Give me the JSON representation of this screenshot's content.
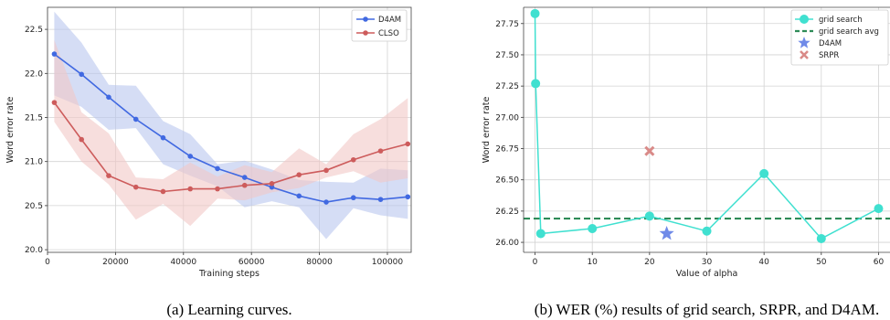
{
  "chart_data": [
    {
      "type": "line",
      "caption": "(a) Learning curves.",
      "xlabel": "Training steps",
      "ylabel": "Word error rate",
      "xlim": [
        0,
        107000
      ],
      "ylim": [
        19.97,
        22.75
      ],
      "xticks": [
        0,
        20000,
        40000,
        60000,
        80000,
        100000
      ],
      "xtick_labels": [
        "0",
        "20000",
        "40000",
        "60000",
        "80000",
        "100000"
      ],
      "yticks": [
        20.0,
        20.5,
        21.0,
        21.5,
        22.0,
        22.5
      ],
      "ytick_labels": [
        "20.0",
        "20.5",
        "21.0",
        "21.5",
        "22.0",
        "22.5"
      ],
      "grid": true,
      "legend_position": "top-right",
      "series": [
        {
          "name": "D4AM",
          "color": "#4169e1",
          "band_color": "#b9c6ee",
          "x": [
            2000,
            10000,
            18000,
            26000,
            34000,
            42000,
            50000,
            58000,
            66000,
            74000,
            82000,
            90000,
            98000,
            106000
          ],
          "values": [
            22.22,
            21.99,
            21.73,
            21.48,
            21.27,
            21.06,
            20.92,
            20.82,
            20.71,
            20.61,
            20.54,
            20.59,
            20.57,
            20.6
          ],
          "lower": [
            21.75,
            21.62,
            21.36,
            21.38,
            20.97,
            20.84,
            20.72,
            20.48,
            20.55,
            20.48,
            20.12,
            20.47,
            20.39,
            20.35
          ],
          "upper": [
            22.7,
            22.35,
            21.87,
            21.86,
            21.46,
            21.31,
            20.97,
            21.01,
            20.91,
            20.79,
            20.77,
            20.76,
            20.92,
            20.9
          ]
        },
        {
          "name": "CLSO",
          "color": "#cd5c5c",
          "band_color": "#f2c8c6",
          "x": [
            2000,
            10000,
            18000,
            26000,
            34000,
            42000,
            50000,
            58000,
            66000,
            74000,
            82000,
            90000,
            98000,
            106000
          ],
          "values": [
            21.67,
            21.25,
            20.84,
            20.71,
            20.66,
            20.69,
            20.69,
            20.73,
            20.75,
            20.85,
            20.9,
            21.02,
            21.12,
            21.2
          ],
          "lower": [
            21.45,
            21.0,
            20.74,
            20.34,
            20.52,
            20.27,
            20.58,
            20.56,
            20.65,
            20.7,
            20.82,
            20.89,
            20.76,
            20.81
          ],
          "upper": [
            22.38,
            21.56,
            21.32,
            20.82,
            20.8,
            20.99,
            20.83,
            20.96,
            20.88,
            21.15,
            20.97,
            21.31,
            21.48,
            21.72
          ]
        }
      ]
    },
    {
      "type": "scatter",
      "caption": "(b) WER (%) results of grid search, SRPR, and D4AM.",
      "xlabel": "Value of alpha",
      "ylabel": "Word error rate",
      "xlim": [
        -2,
        62
      ],
      "ylim": [
        25.92,
        27.88
      ],
      "xticks": [
        0,
        10,
        20,
        30,
        40,
        50,
        60
      ],
      "xtick_labels": [
        "0",
        "10",
        "20",
        "30",
        "40",
        "50",
        "60"
      ],
      "yticks": [
        26.0,
        26.25,
        26.5,
        26.75,
        27.0,
        27.25,
        27.5,
        27.75
      ],
      "ytick_labels": [
        "26.00",
        "26.25",
        "26.50",
        "26.75",
        "27.00",
        "27.25",
        "27.50",
        "27.75"
      ],
      "grid": true,
      "legend_position": "top-right",
      "series": [
        {
          "name": "grid search",
          "kind": "line-marker",
          "color": "#40e0d0",
          "x": [
            0,
            0.1,
            1,
            10,
            20,
            30,
            40,
            50,
            60
          ],
          "values": [
            27.83,
            27.27,
            26.07,
            26.11,
            26.21,
            26.09,
            26.55,
            26.03,
            26.27
          ]
        },
        {
          "name": "grid search avg",
          "kind": "hline",
          "color": "#2e8b57",
          "value": 26.19
        },
        {
          "name": "D4AM",
          "kind": "star",
          "color": "#6f8ae8",
          "x": [
            23
          ],
          "values": [
            26.07
          ]
        },
        {
          "name": "SRPR",
          "kind": "x",
          "color": "#d98a88",
          "x": [
            20
          ],
          "values": [
            26.73
          ]
        }
      ]
    }
  ]
}
